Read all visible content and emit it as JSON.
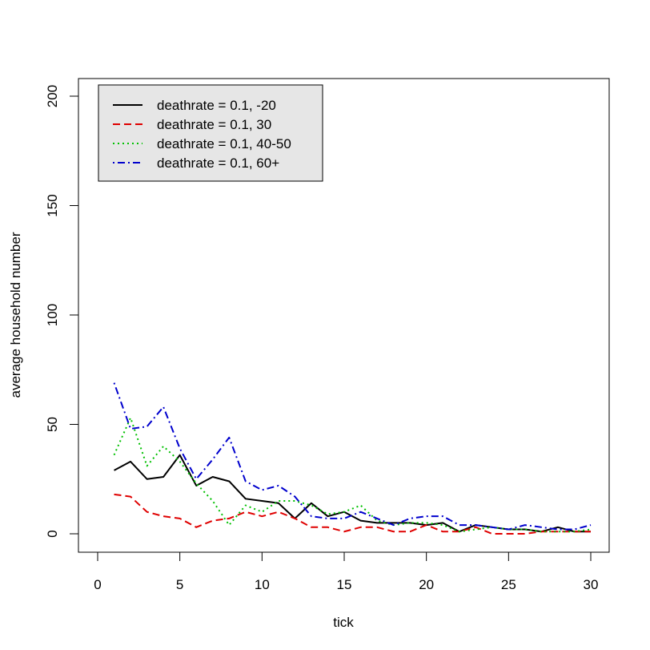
{
  "chart_data": {
    "type": "line",
    "title": "",
    "xlabel": "tick",
    "ylabel": "average household number",
    "xlim": [
      0,
      30
    ],
    "ylim": [
      0,
      200
    ],
    "x_ticks": [
      0,
      5,
      10,
      15,
      20,
      25,
      30
    ],
    "y_ticks": [
      0,
      50,
      100,
      150,
      200
    ],
    "x_tick_labels": [
      "0",
      "5",
      "10",
      "15",
      "20",
      "25",
      "30"
    ],
    "y_tick_labels": [
      "0",
      "50",
      "100",
      "150",
      "200"
    ],
    "grid": false,
    "legend_position": "top-left",
    "legend_background": "#e6e6e6",
    "x": [
      1,
      2,
      3,
      4,
      5,
      6,
      7,
      8,
      9,
      10,
      11,
      12,
      13,
      14,
      15,
      16,
      17,
      18,
      19,
      20,
      21,
      22,
      23,
      24,
      25,
      26,
      27,
      28,
      29,
      30
    ],
    "series": [
      {
        "name": "deathrate = 0.1, -20",
        "color": "#000000",
        "dash": "solid",
        "values": [
          29,
          33,
          25,
          26,
          36,
          22,
          26,
          24,
          16,
          15,
          14,
          7,
          14,
          8,
          10,
          6,
          5,
          5,
          5,
          4,
          5,
          1,
          4,
          3,
          2,
          2,
          1,
          3,
          1,
          1
        ]
      },
      {
        "name": "deathrate = 0.1, 30",
        "color": "#df0000",
        "dash": "dashed",
        "values": [
          18,
          17,
          10,
          8,
          7,
          3,
          6,
          7,
          10,
          8,
          10,
          7,
          3,
          3,
          1,
          3,
          3,
          1,
          1,
          4,
          1,
          1,
          3,
          0,
          0,
          0,
          1,
          1,
          1,
          1
        ]
      },
      {
        "name": "deathrate = 0.1, 40-50",
        "color": "#00c000",
        "dash": "dotted",
        "values": [
          36,
          53,
          31,
          40,
          33,
          23,
          15,
          4,
          13,
          10,
          15,
          15,
          13,
          9,
          10,
          13,
          6,
          4,
          5,
          5,
          4,
          1,
          2,
          3,
          2,
          2,
          1,
          1,
          1,
          2
        ]
      },
      {
        "name": "deathrate = 0.1, 60+",
        "color": "#0000cd",
        "dash": "dotdash",
        "values": [
          69,
          48,
          49,
          58,
          39,
          25,
          34,
          44,
          24,
          20,
          22,
          17,
          8,
          7,
          7,
          10,
          7,
          4,
          7,
          8,
          8,
          4,
          4,
          3,
          2,
          4,
          3,
          2,
          2,
          4
        ]
      }
    ]
  }
}
